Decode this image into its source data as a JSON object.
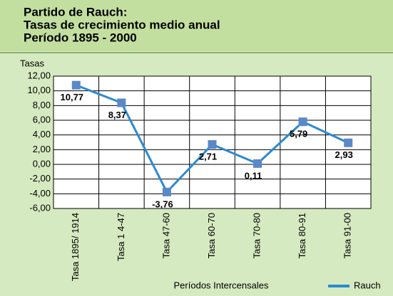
{
  "chart_data": {
    "type": "line",
    "title": "Partido de Rauch:",
    "subtitle": [
      "Tasas de crecimiento medio anual",
      "Período 1895 - 2000"
    ],
    "y_label": "Tasas",
    "x_label": "Períodos Intercensales",
    "categories": [
      "Tasa 1895/ 1914",
      "Tasa 1 4-47",
      "Tasa 47-60",
      "Tasa 60-70",
      "Tasa 70-80",
      "Tasa 80-91",
      "Tasa  91-00"
    ],
    "series": [
      {
        "name": "Rauch",
        "color": "#2b8ad1",
        "marker_color": "#5b88c6",
        "values": [
          10.77,
          8.37,
          -3.76,
          2.71,
          0.11,
          5.79,
          2.93
        ],
        "value_labels": [
          "10,77",
          "8,37",
          "-3,76",
          "2,71",
          "0,11",
          "5,79",
          "2,93"
        ]
      }
    ],
    "ylim": [
      -6,
      12
    ],
    "yticks": [
      {
        "value": -6,
        "label": "-6,00"
      },
      {
        "value": -4,
        "label": "-4,00"
      },
      {
        "value": -2,
        "label": "-2,00"
      },
      {
        "value": 0,
        "label": "0,00"
      },
      {
        "value": 2,
        "label": "2,00"
      },
      {
        "value": 4,
        "label": "4,00"
      },
      {
        "value": 6,
        "label": "6,00"
      },
      {
        "value": 8,
        "label": "8,00"
      },
      {
        "value": 10,
        "label": "10,00"
      },
      {
        "value": 12,
        "label": "12,00"
      }
    ],
    "grid": true,
    "legend": "bottom-right"
  }
}
